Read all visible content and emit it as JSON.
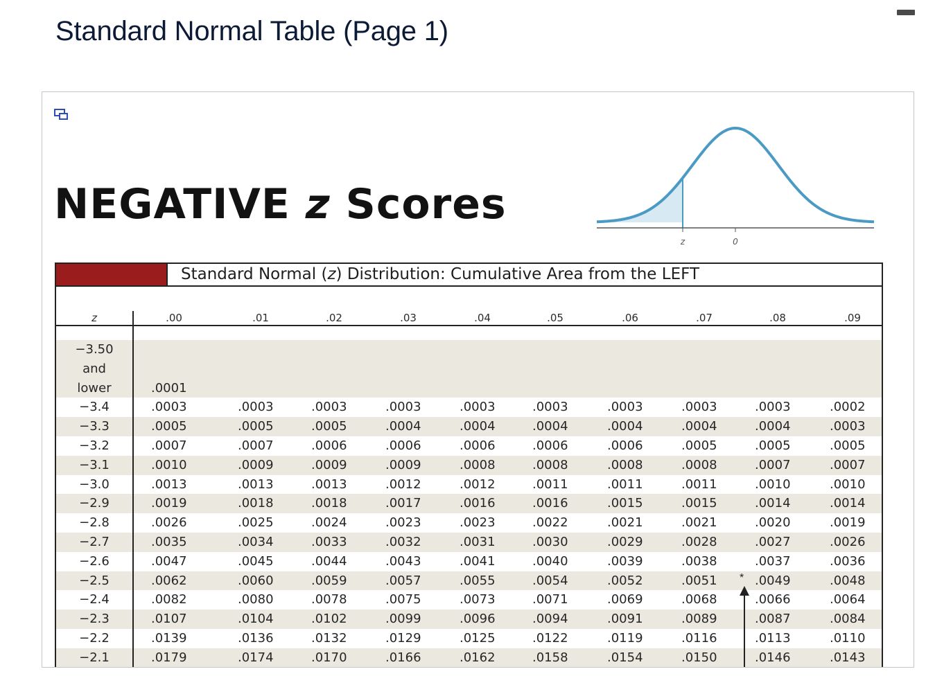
{
  "page_title": "Standard Normal Table (Page 1)",
  "heading": {
    "text_before": "NEGATIVE ",
    "variable": "z",
    "text_after": " Scores"
  },
  "curve": {
    "z_label": "z",
    "zero_label": "0",
    "line_color": "#4a9ac4",
    "fill_color": "#d7eaf3"
  },
  "banner": {
    "text_before": "Standard Normal (",
    "variable": "z",
    "text_after": ") Distribution: Cumulative Area from the LEFT",
    "swatch_color": "#9b1c1c"
  },
  "table": {
    "z_header": "z",
    "columns": [
      ".00",
      ".01",
      ".02",
      ".03",
      ".04",
      ".05",
      ".06",
      ".07",
      ".08",
      ".09"
    ],
    "first_row": {
      "z_lines": [
        "−3.50",
        "and",
        "lower"
      ],
      "value": ".0001"
    },
    "rows": [
      {
        "z": "−3.4",
        "values": [
          ".0003",
          ".0003",
          ".0003",
          ".0003",
          ".0003",
          ".0003",
          ".0003",
          ".0003",
          ".0003",
          ".0002"
        ]
      },
      {
        "z": "−3.3",
        "values": [
          ".0005",
          ".0005",
          ".0005",
          ".0004",
          ".0004",
          ".0004",
          ".0004",
          ".0004",
          ".0004",
          ".0003"
        ]
      },
      {
        "z": "−3.2",
        "values": [
          ".0007",
          ".0007",
          ".0006",
          ".0006",
          ".0006",
          ".0006",
          ".0006",
          ".0005",
          ".0005",
          ".0005"
        ]
      },
      {
        "z": "−3.1",
        "values": [
          ".0010",
          ".0009",
          ".0009",
          ".0009",
          ".0008",
          ".0008",
          ".0008",
          ".0008",
          ".0007",
          ".0007"
        ]
      },
      {
        "z": "−3.0",
        "values": [
          ".0013",
          ".0013",
          ".0013",
          ".0012",
          ".0012",
          ".0011",
          ".0011",
          ".0011",
          ".0010",
          ".0010"
        ]
      },
      {
        "z": "−2.9",
        "values": [
          ".0019",
          ".0018",
          ".0018",
          ".0017",
          ".0016",
          ".0016",
          ".0015",
          ".0015",
          ".0014",
          ".0014"
        ]
      },
      {
        "z": "−2.8",
        "values": [
          ".0026",
          ".0025",
          ".0024",
          ".0023",
          ".0023",
          ".0022",
          ".0021",
          ".0021",
          ".0020",
          ".0019"
        ]
      },
      {
        "z": "−2.7",
        "values": [
          ".0035",
          ".0034",
          ".0033",
          ".0032",
          ".0031",
          ".0030",
          ".0029",
          ".0028",
          ".0027",
          ".0026"
        ]
      },
      {
        "z": "−2.6",
        "values": [
          ".0047",
          ".0045",
          ".0044",
          ".0043",
          ".0041",
          ".0040",
          ".0039",
          ".0038",
          ".0037",
          ".0036"
        ]
      },
      {
        "z": "−2.5",
        "values": [
          ".0062",
          ".0060",
          ".0059",
          ".0057",
          ".0055",
          ".0054",
          ".0052",
          ".0051",
          ".0049",
          ".0048"
        ]
      },
      {
        "z": "−2.4",
        "values": [
          ".0082",
          ".0080",
          ".0078",
          ".0075",
          ".0073",
          ".0071",
          ".0069",
          ".0068",
          ".0066",
          ".0064"
        ]
      },
      {
        "z": "−2.3",
        "values": [
          ".0107",
          ".0104",
          ".0102",
          ".0099",
          ".0096",
          ".0094",
          ".0091",
          ".0089",
          ".0087",
          ".0084"
        ]
      },
      {
        "z": "−2.2",
        "values": [
          ".0139",
          ".0136",
          ".0132",
          ".0129",
          ".0125",
          ".0122",
          ".0119",
          ".0116",
          ".0113",
          ".0110"
        ]
      },
      {
        "z": "−2.1",
        "values": [
          ".0179",
          ".0174",
          ".0170",
          ".0166",
          ".0162",
          ".0158",
          ".0154",
          ".0150",
          ".0146",
          ".0143"
        ]
      }
    ],
    "band_color": "#ebe9df",
    "marker": {
      "symbol": "*"
    }
  }
}
